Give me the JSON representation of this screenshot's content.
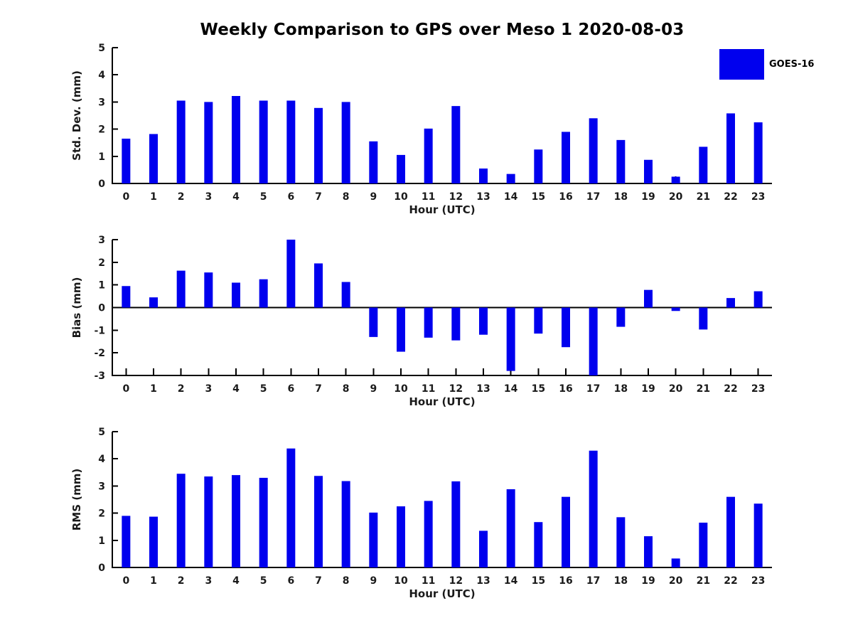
{
  "title": "Weekly Comparison to GPS over Meso 1 2020-08-03",
  "legend": {
    "label": "GOES-16",
    "color": "#0000ee"
  },
  "colors": {
    "bar": "#0000ee",
    "axis": "#000000",
    "text": "#1a1a1a"
  },
  "chart_data": [
    {
      "type": "bar",
      "name": "std-dev",
      "ylabel": "Std. Dev. (mm)",
      "xlabel": "Hour (UTC)",
      "categories": [
        "0",
        "1",
        "2",
        "3",
        "4",
        "5",
        "6",
        "7",
        "8",
        "9",
        "10",
        "11",
        "12",
        "13",
        "14",
        "15",
        "16",
        "17",
        "18",
        "19",
        "20",
        "21",
        "22",
        "23"
      ],
      "values": [
        1.65,
        1.82,
        3.05,
        3.0,
        3.22,
        3.05,
        3.05,
        2.78,
        3.0,
        1.55,
        1.05,
        2.02,
        2.85,
        0.55,
        0.35,
        1.25,
        1.9,
        2.4,
        1.6,
        0.87,
        0.25,
        1.35,
        2.58,
        2.25
      ],
      "ylim": [
        0,
        5
      ],
      "yticks": [
        0,
        1,
        2,
        3,
        4,
        5
      ],
      "grid": false,
      "series_name": "GOES-16"
    },
    {
      "type": "bar",
      "name": "bias",
      "ylabel": "Bias (mm)",
      "xlabel": "Hour (UTC)",
      "categories": [
        "0",
        "1",
        "2",
        "3",
        "4",
        "5",
        "6",
        "7",
        "8",
        "9",
        "10",
        "11",
        "12",
        "13",
        "14",
        "15",
        "16",
        "17",
        "18",
        "19",
        "20",
        "21",
        "22",
        "23"
      ],
      "values": [
        0.95,
        0.45,
        1.63,
        1.55,
        1.1,
        1.25,
        3.0,
        1.95,
        1.13,
        -1.3,
        -1.95,
        -1.33,
        -1.45,
        -1.2,
        -2.8,
        -1.15,
        -1.75,
        -3.0,
        -0.85,
        0.78,
        -0.15,
        -0.97,
        0.42,
        0.72
      ],
      "ylim": [
        -3,
        3
      ],
      "yticks": [
        -3,
        -2,
        -1,
        0,
        1,
        2,
        3
      ],
      "zero_line": true,
      "grid": false,
      "series_name": "GOES-16"
    },
    {
      "type": "bar",
      "name": "rms",
      "ylabel": "RMS (mm)",
      "xlabel": "Hour (UTC)",
      "categories": [
        "0",
        "1",
        "2",
        "3",
        "4",
        "5",
        "6",
        "7",
        "8",
        "9",
        "10",
        "11",
        "12",
        "13",
        "14",
        "15",
        "16",
        "17",
        "18",
        "19",
        "20",
        "21",
        "22",
        "23"
      ],
      "values": [
        1.9,
        1.87,
        3.45,
        3.35,
        3.4,
        3.3,
        4.38,
        3.37,
        3.18,
        2.02,
        2.25,
        2.45,
        3.17,
        1.35,
        2.88,
        1.67,
        2.6,
        4.3,
        1.85,
        1.15,
        0.33,
        1.65,
        2.6,
        2.35
      ],
      "ylim": [
        0,
        5
      ],
      "yticks": [
        0,
        1,
        2,
        3,
        4,
        5
      ],
      "grid": false,
      "series_name": "GOES-16"
    }
  ]
}
